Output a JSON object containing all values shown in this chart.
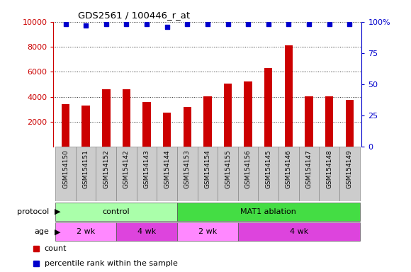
{
  "title": "GDS2561 / 100446_r_at",
  "samples": [
    "GSM154150",
    "GSM154151",
    "GSM154152",
    "GSM154142",
    "GSM154143",
    "GSM154144",
    "GSM154153",
    "GSM154154",
    "GSM154155",
    "GSM154156",
    "GSM154145",
    "GSM154146",
    "GSM154147",
    "GSM154148",
    "GSM154149"
  ],
  "counts": [
    3400,
    3280,
    4580,
    4600,
    3560,
    2760,
    3180,
    4020,
    5080,
    5220,
    6330,
    8140,
    4060,
    4060,
    3780
  ],
  "percentile_ranks": [
    98,
    97,
    98,
    98,
    98,
    96,
    98,
    98,
    98,
    98,
    98,
    98,
    98,
    98,
    98
  ],
  "ylim_left": [
    0,
    10000
  ],
  "ylim_right": [
    0,
    100
  ],
  "yticks_left": [
    2000,
    4000,
    6000,
    8000,
    10000
  ],
  "yticks_right": [
    0,
    25,
    50,
    75,
    100
  ],
  "bar_color": "#cc0000",
  "dot_color": "#0000cc",
  "grid_color": "#000000",
  "protocol_groups": [
    {
      "label": "control",
      "start": 0,
      "end": 6,
      "color": "#aaffaa"
    },
    {
      "label": "MAT1 ablation",
      "start": 6,
      "end": 15,
      "color": "#44dd44"
    }
  ],
  "age_groups": [
    {
      "label": "2 wk",
      "start": 0,
      "end": 3,
      "color": "#ff88ff"
    },
    {
      "label": "4 wk",
      "start": 3,
      "end": 6,
      "color": "#dd44dd"
    },
    {
      "label": "2 wk",
      "start": 6,
      "end": 9,
      "color": "#ff88ff"
    },
    {
      "label": "4 wk",
      "start": 9,
      "end": 15,
      "color": "#dd44dd"
    }
  ],
  "legend_count_color": "#cc0000",
  "legend_dot_color": "#0000cc",
  "background_color": "#ffffff",
  "tick_label_color_left": "#cc0000",
  "tick_label_color_right": "#0000cc",
  "title_color": "#000000",
  "xlabel_area_color": "#cccccc",
  "bar_width": 0.4
}
